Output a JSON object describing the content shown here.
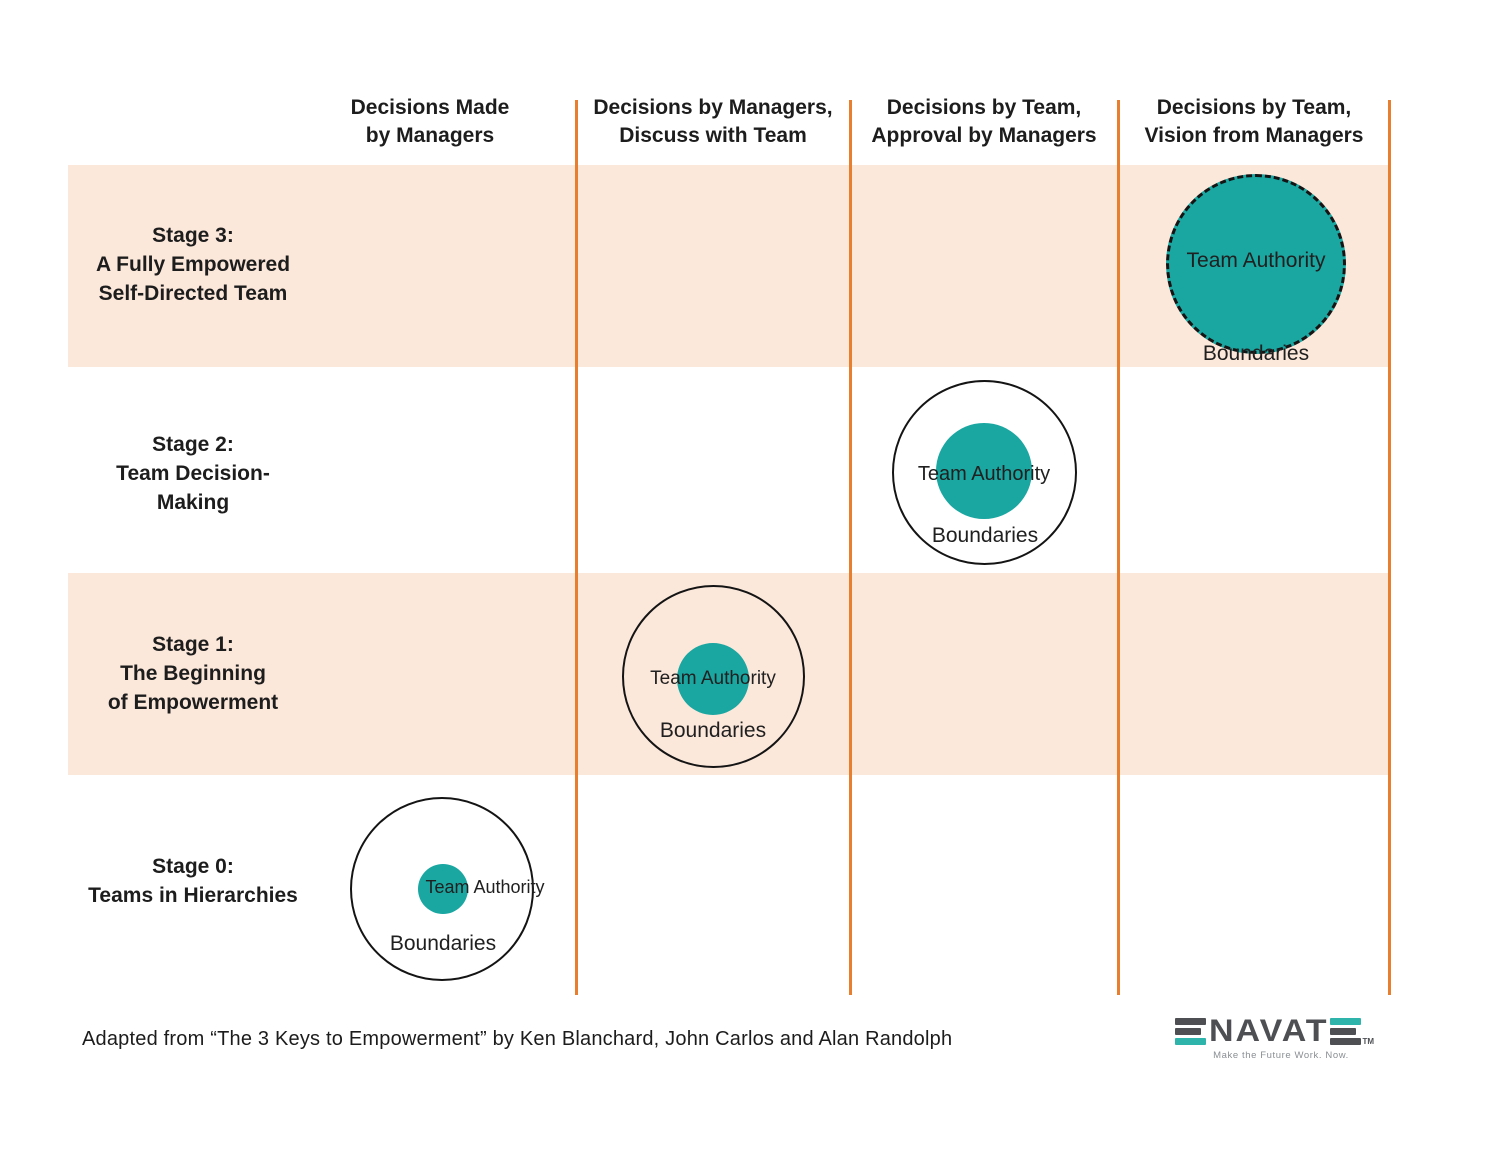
{
  "colors": {
    "teal": "#1aa6a1",
    "peach_band": "#fce8db",
    "divider_orange": "#e87f2f",
    "text_dark": "#1d1d1d",
    "logo_gray": "#4d4f53",
    "logo_teal": "#2eb4ab"
  },
  "header": {
    "columns": [
      {
        "line1": "Decisions Made",
        "line2": "by Managers"
      },
      {
        "line1": "Decisions by Managers,",
        "line2": "Discuss with Team"
      },
      {
        "line1": "Decisions by Team,",
        "line2": "Approval by Managers"
      },
      {
        "line1": "Decisions by Team,",
        "line2": "Vision from Managers"
      }
    ]
  },
  "stages": [
    {
      "lines": [
        "Stage 3:",
        "A Fully Empowered",
        "Self-Directed Team"
      ],
      "team_authority": "Team Authority",
      "boundaries": "Boundaries"
    },
    {
      "lines": [
        "Stage 2:",
        "Team Decision-",
        "Making"
      ],
      "team_authority": "Team Authority",
      "boundaries": "Boundaries"
    },
    {
      "lines": [
        "Stage 1:",
        "The Beginning",
        "of Empowerment"
      ],
      "team_authority": "Team Authority",
      "boundaries": "Boundaries"
    },
    {
      "lines": [
        "Stage 0:",
        "Teams in Hierarchies"
      ],
      "team_authority": "Team Authority",
      "boundaries": "Boundaries"
    }
  ],
  "footer": {
    "attribution": "Adapted from “The 3 Keys to Empowerment” by Ken Blanchard, John Carlos and Alan Randolph"
  },
  "logo": {
    "letters": "NAVAT",
    "tm": "TM",
    "tagline": "Make the Future Work. Now."
  }
}
